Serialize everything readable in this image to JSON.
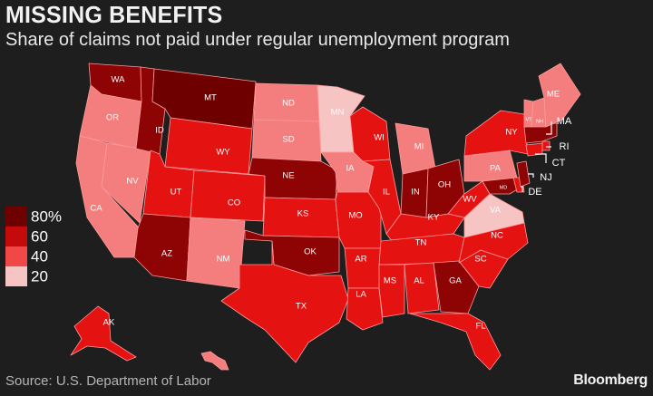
{
  "header": {
    "title": "MISSING BENEFITS",
    "subtitle": "Share of claims not paid under regular unemployment program"
  },
  "footer": {
    "source": "Source: U.S. Department of Labor",
    "brand": "Bloomberg"
  },
  "legend": [
    {
      "label": "80%",
      "color": "#6e0000"
    },
    {
      "label": "60",
      "color": "#c40a0a"
    },
    {
      "label": "40",
      "color": "#f04848"
    },
    {
      "label": "20",
      "color": "#f7c4c4"
    }
  ],
  "colors": {
    "background": "#1e1e1e",
    "state_border": "#ff9a9a",
    "tier_80": "#6e0000",
    "tier_70": "#8e0303",
    "tier_60": "#c40a0a",
    "tier_50": "#e51212",
    "tier_40": "#f04848",
    "tier_30": "#f47e7e",
    "tier_20": "#f7c4c4"
  },
  "states": [
    {
      "code": "WA",
      "color": "#8e0303"
    },
    {
      "code": "OR",
      "color": "#f47e7e"
    },
    {
      "code": "CA",
      "color": "#f47e7e"
    },
    {
      "code": "NV",
      "color": "#f47e7e"
    },
    {
      "code": "ID",
      "color": "#8e0303"
    },
    {
      "code": "MT",
      "color": "#6e0000"
    },
    {
      "code": "WY",
      "color": "#e51212"
    },
    {
      "code": "UT",
      "color": "#e51212"
    },
    {
      "code": "CO",
      "color": "#e51212"
    },
    {
      "code": "AZ",
      "color": "#8e0303"
    },
    {
      "code": "NM",
      "color": "#f47e7e"
    },
    {
      "code": "ND",
      "color": "#f47e7e"
    },
    {
      "code": "SD",
      "color": "#f47e7e"
    },
    {
      "code": "NE",
      "color": "#8e0303"
    },
    {
      "code": "KS",
      "color": "#e51212"
    },
    {
      "code": "OK",
      "color": "#8e0303"
    },
    {
      "code": "TX",
      "color": "#e51212"
    },
    {
      "code": "MN",
      "color": "#f7c4c4"
    },
    {
      "code": "IA",
      "color": "#f47e7e"
    },
    {
      "code": "MO",
      "color": "#e51212"
    },
    {
      "code": "AR",
      "color": "#e51212"
    },
    {
      "code": "LA",
      "color": "#e51212"
    },
    {
      "code": "WI",
      "color": "#e51212"
    },
    {
      "code": "IL",
      "color": "#e51212"
    },
    {
      "code": "MI",
      "color": "#f47e7e"
    },
    {
      "code": "IN",
      "color": "#8e0303"
    },
    {
      "code": "OH",
      "color": "#8e0303"
    },
    {
      "code": "KY",
      "color": "#e51212"
    },
    {
      "code": "TN",
      "color": "#e51212"
    },
    {
      "code": "MS",
      "color": "#e51212"
    },
    {
      "code": "AL",
      "color": "#e51212"
    },
    {
      "code": "GA",
      "color": "#8e0303"
    },
    {
      "code": "FL",
      "color": "#e51212"
    },
    {
      "code": "SC",
      "color": "#e51212"
    },
    {
      "code": "NC",
      "color": "#e51212"
    },
    {
      "code": "VA",
      "color": "#f7c4c4"
    },
    {
      "code": "WV",
      "color": "#e51212"
    },
    {
      "code": "PA",
      "color": "#f47e7e"
    },
    {
      "code": "NY",
      "color": "#e51212"
    },
    {
      "code": "MD",
      "color": "#8e0303"
    },
    {
      "code": "DE",
      "color": "#e51212"
    },
    {
      "code": "NJ",
      "color": "#8e0303"
    },
    {
      "code": "CT",
      "color": "#e51212"
    },
    {
      "code": "RI",
      "color": "#e51212"
    },
    {
      "code": "MA",
      "color": "#8e0303"
    },
    {
      "code": "VT",
      "color": "#f47e7e"
    },
    {
      "code": "NH",
      "color": "#f47e7e"
    },
    {
      "code": "ME",
      "color": "#f47e7e"
    },
    {
      "code": "AK",
      "color": "#e51212"
    },
    {
      "code": "HI",
      "color": "#f47e7e"
    }
  ]
}
